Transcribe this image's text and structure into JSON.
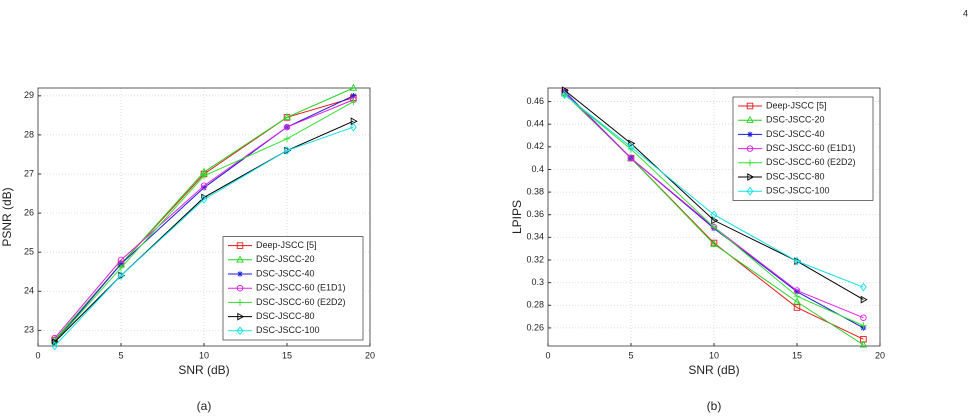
{
  "page_number": "4",
  "chart_data": [
    {
      "type": "line",
      "caption": "(a)",
      "xlabel": "SNR (dB)",
      "ylabel": "PSNR (dB)",
      "x": [
        1,
        5,
        10,
        15,
        19
      ],
      "xlim": [
        0,
        20
      ],
      "xticks": [
        0,
        5,
        10,
        15,
        20
      ],
      "ylim": [
        22.6,
        29.2
      ],
      "yticks": [
        23,
        24,
        25,
        26,
        27,
        28,
        29
      ],
      "grid": true,
      "legend": "lower right",
      "series": [
        {
          "name": "Deep-JSCC [5]",
          "color": "#e8191c",
          "marker": "square",
          "values": [
            22.75,
            24.7,
            27.0,
            28.45,
            28.95
          ]
        },
        {
          "name": "DSC-JSCC-20",
          "color": "#22d422",
          "marker": "triangle",
          "values": [
            22.75,
            24.7,
            27.05,
            28.45,
            29.2
          ]
        },
        {
          "name": "DSC-JSCC-40",
          "color": "#1a1ad8",
          "marker": "star",
          "values": [
            22.7,
            24.7,
            26.65,
            28.2,
            29.0
          ]
        },
        {
          "name": "DSC-JSCC-60 (E1D1)",
          "color": "#e020e0",
          "marker": "circle",
          "values": [
            22.8,
            24.8,
            26.7,
            28.2,
            28.9
          ]
        },
        {
          "name": "DSC-JSCC-60 (E2D2)",
          "color": "#30e030",
          "marker": "plus",
          "values": [
            22.7,
            24.6,
            26.95,
            27.9,
            28.85
          ]
        },
        {
          "name": "DSC-JSCC-80",
          "color": "#000000",
          "marker": "triangle-right",
          "values": [
            22.7,
            24.4,
            26.4,
            27.6,
            28.35
          ]
        },
        {
          "name": "DSC-JSCC-100",
          "color": "#10e0e8",
          "marker": "diamond",
          "values": [
            22.6,
            24.4,
            26.35,
            27.6,
            28.2
          ]
        }
      ]
    },
    {
      "type": "line",
      "caption": "(b)",
      "xlabel": "SNR (dB)",
      "ylabel": "LPIPS",
      "x": [
        1,
        5,
        10,
        15,
        19
      ],
      "xlim": [
        0,
        20
      ],
      "xticks": [
        0,
        5,
        10,
        15,
        20
      ],
      "ylim": [
        0.244,
        0.472
      ],
      "yticks": [
        0.26,
        0.28,
        0.3,
        0.32,
        0.34,
        0.36,
        0.38,
        0.4,
        0.42,
        0.44,
        0.46
      ],
      "grid": true,
      "legend": "upper right",
      "series": [
        {
          "name": "Deep-JSCC [5]",
          "color": "#e8191c",
          "marker": "square",
          "values": [
            0.468,
            0.41,
            0.335,
            0.278,
            0.25
          ]
        },
        {
          "name": "DSC-JSCC-20",
          "color": "#22d422",
          "marker": "triangle",
          "values": [
            0.467,
            0.41,
            0.334,
            0.283,
            0.245
          ]
        },
        {
          "name": "DSC-JSCC-40",
          "color": "#1a1ad8",
          "marker": "star",
          "values": [
            0.469,
            0.41,
            0.348,
            0.292,
            0.26
          ]
        },
        {
          "name": "DSC-JSCC-60 (E1D1)",
          "color": "#e020e0",
          "marker": "circle",
          "values": [
            0.468,
            0.41,
            0.349,
            0.293,
            0.269
          ]
        },
        {
          "name": "DSC-JSCC-60 (E2D2)",
          "color": "#30e030",
          "marker": "plus",
          "values": [
            0.466,
            0.418,
            0.349,
            0.288,
            0.262
          ]
        },
        {
          "name": "DSC-JSCC-80",
          "color": "#000000",
          "marker": "triangle-right",
          "values": [
            0.47,
            0.423,
            0.355,
            0.319,
            0.285
          ]
        },
        {
          "name": "DSC-JSCC-100",
          "color": "#10e0e8",
          "marker": "diamond",
          "values": [
            0.466,
            0.42,
            0.36,
            0.319,
            0.296
          ]
        }
      ]
    }
  ]
}
